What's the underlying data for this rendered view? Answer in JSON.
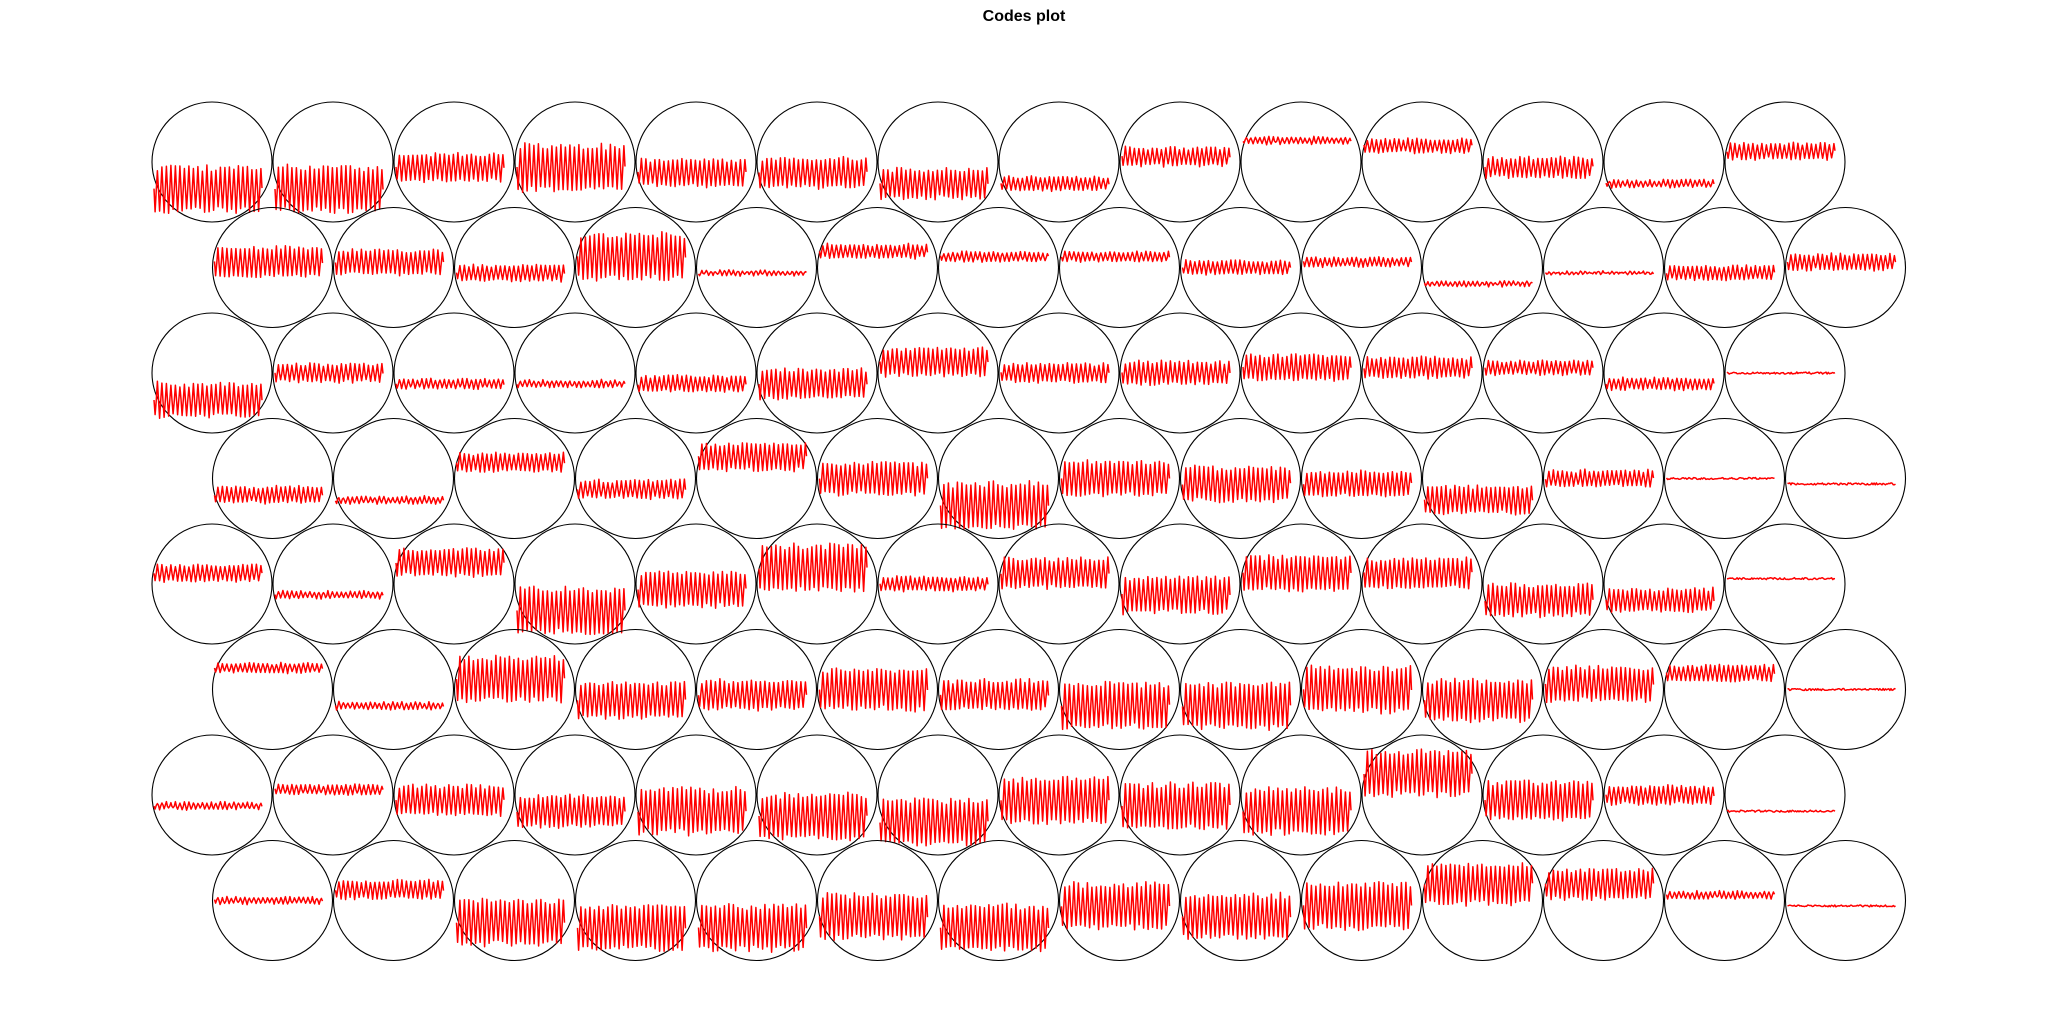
{
  "chart_data": {
    "type": "som-codes",
    "title": "Codes plot",
    "grid": {
      "topology": "hexagonal",
      "rows": 8,
      "cols": 14
    },
    "trace_color": "#ff0000",
    "circle_color": "#000000",
    "cells": [
      [
        [
          2.0,
          1.0
        ],
        [
          2.0,
          1.0
        ],
        [
          1.2,
          0.6
        ],
        [
          2.0,
          0.6
        ],
        [
          1.2,
          0.7
        ],
        [
          1.3,
          0.7
        ],
        [
          1.3,
          0.9
        ],
        [
          0.6,
          0.9
        ],
        [
          0.8,
          0.4
        ],
        [
          0.3,
          0.1
        ],
        [
          0.6,
          0.2
        ],
        [
          0.9,
          0.6
        ],
        [
          0.3,
          0.9
        ],
        [
          0.7,
          0.3
        ]
      ],
      [
        [
          1.3,
          0.4
        ],
        [
          1.1,
          0.4
        ],
        [
          0.7,
          0.6
        ],
        [
          2.0,
          0.3
        ],
        [
          0.2,
          0.6
        ],
        [
          0.6,
          0.2
        ],
        [
          0.4,
          0.3
        ],
        [
          0.4,
          0.3
        ],
        [
          0.6,
          0.5
        ],
        [
          0.4,
          0.4
        ],
        [
          0.2,
          0.8
        ],
        [
          0.1,
          0.6
        ],
        [
          0.6,
          0.6
        ],
        [
          0.7,
          0.4
        ]
      ],
      [
        [
          1.5,
          1.0
        ],
        [
          0.8,
          0.5
        ],
        [
          0.4,
          0.7
        ],
        [
          0.3,
          0.7
        ],
        [
          0.7,
          0.7
        ],
        [
          1.3,
          0.7
        ],
        [
          1.2,
          0.3
        ],
        [
          0.8,
          0.5
        ],
        [
          1.0,
          0.5
        ],
        [
          1.1,
          0.4
        ],
        [
          0.9,
          0.4
        ],
        [
          0.6,
          0.4
        ],
        [
          0.5,
          0.7
        ],
        [
          0.0,
          0.5
        ]
      ],
      [
        [
          0.7,
          0.8
        ],
        [
          0.3,
          0.9
        ],
        [
          0.8,
          0.2
        ],
        [
          0.8,
          0.7
        ],
        [
          1.2,
          0.1
        ],
        [
          1.4,
          0.5
        ],
        [
          2.0,
          1.0
        ],
        [
          1.5,
          0.5
        ],
        [
          1.5,
          0.6
        ],
        [
          1.1,
          0.6
        ],
        [
          1.2,
          0.9
        ],
        [
          0.7,
          0.5
        ],
        [
          0.0,
          0.5
        ],
        [
          0.0,
          0.6
        ]
      ],
      [
        [
          0.7,
          0.3
        ],
        [
          0.3,
          0.7
        ],
        [
          1.2,
          0.1
        ],
        [
          2.0,
          1.0
        ],
        [
          1.5,
          0.6
        ],
        [
          2.0,
          0.2
        ],
        [
          0.6,
          0.5
        ],
        [
          1.3,
          0.3
        ],
        [
          1.6,
          0.7
        ],
        [
          1.5,
          0.3
        ],
        [
          1.3,
          0.3
        ],
        [
          1.4,
          0.8
        ],
        [
          1.0,
          0.8
        ],
        [
          0.0,
          0.4
        ]
      ],
      [
        [
          0.4,
          0.1
        ],
        [
          0.3,
          0.8
        ],
        [
          2.0,
          0.3
        ],
        [
          1.6,
          0.7
        ],
        [
          1.3,
          0.6
        ],
        [
          1.8,
          0.5
        ],
        [
          1.3,
          0.6
        ],
        [
          2.0,
          0.8
        ],
        [
          2.0,
          0.8
        ],
        [
          2.0,
          0.5
        ],
        [
          1.8,
          0.7
        ],
        [
          1.5,
          0.4
        ],
        [
          0.7,
          0.2
        ],
        [
          0.0,
          0.5
        ]
      ],
      [
        [
          0.3,
          0.7
        ],
        [
          0.4,
          0.4
        ],
        [
          1.3,
          0.6
        ],
        [
          1.4,
          0.8
        ],
        [
          2.0,
          0.8
        ],
        [
          2.0,
          0.9
        ],
        [
          2.0,
          1.0
        ],
        [
          2.0,
          0.6
        ],
        [
          2.0,
          0.7
        ],
        [
          2.0,
          0.8
        ],
        [
          2.0,
          0.1
        ],
        [
          1.7,
          0.6
        ],
        [
          0.8,
          0.5
        ],
        [
          0.0,
          0.8
        ]
      ],
      [
        [
          0.3,
          0.5
        ],
        [
          0.8,
          0.3
        ],
        [
          2.0,
          0.9
        ],
        [
          2.0,
          1.0
        ],
        [
          2.0,
          1.0
        ],
        [
          2.0,
          0.8
        ],
        [
          2.0,
          1.0
        ],
        [
          2.0,
          0.6
        ],
        [
          2.0,
          0.8
        ],
        [
          2.0,
          0.6
        ],
        [
          1.8,
          0.2
        ],
        [
          1.3,
          0.2
        ],
        [
          0.3,
          0.4
        ],
        [
          0.0,
          0.6
        ]
      ]
    ]
  }
}
